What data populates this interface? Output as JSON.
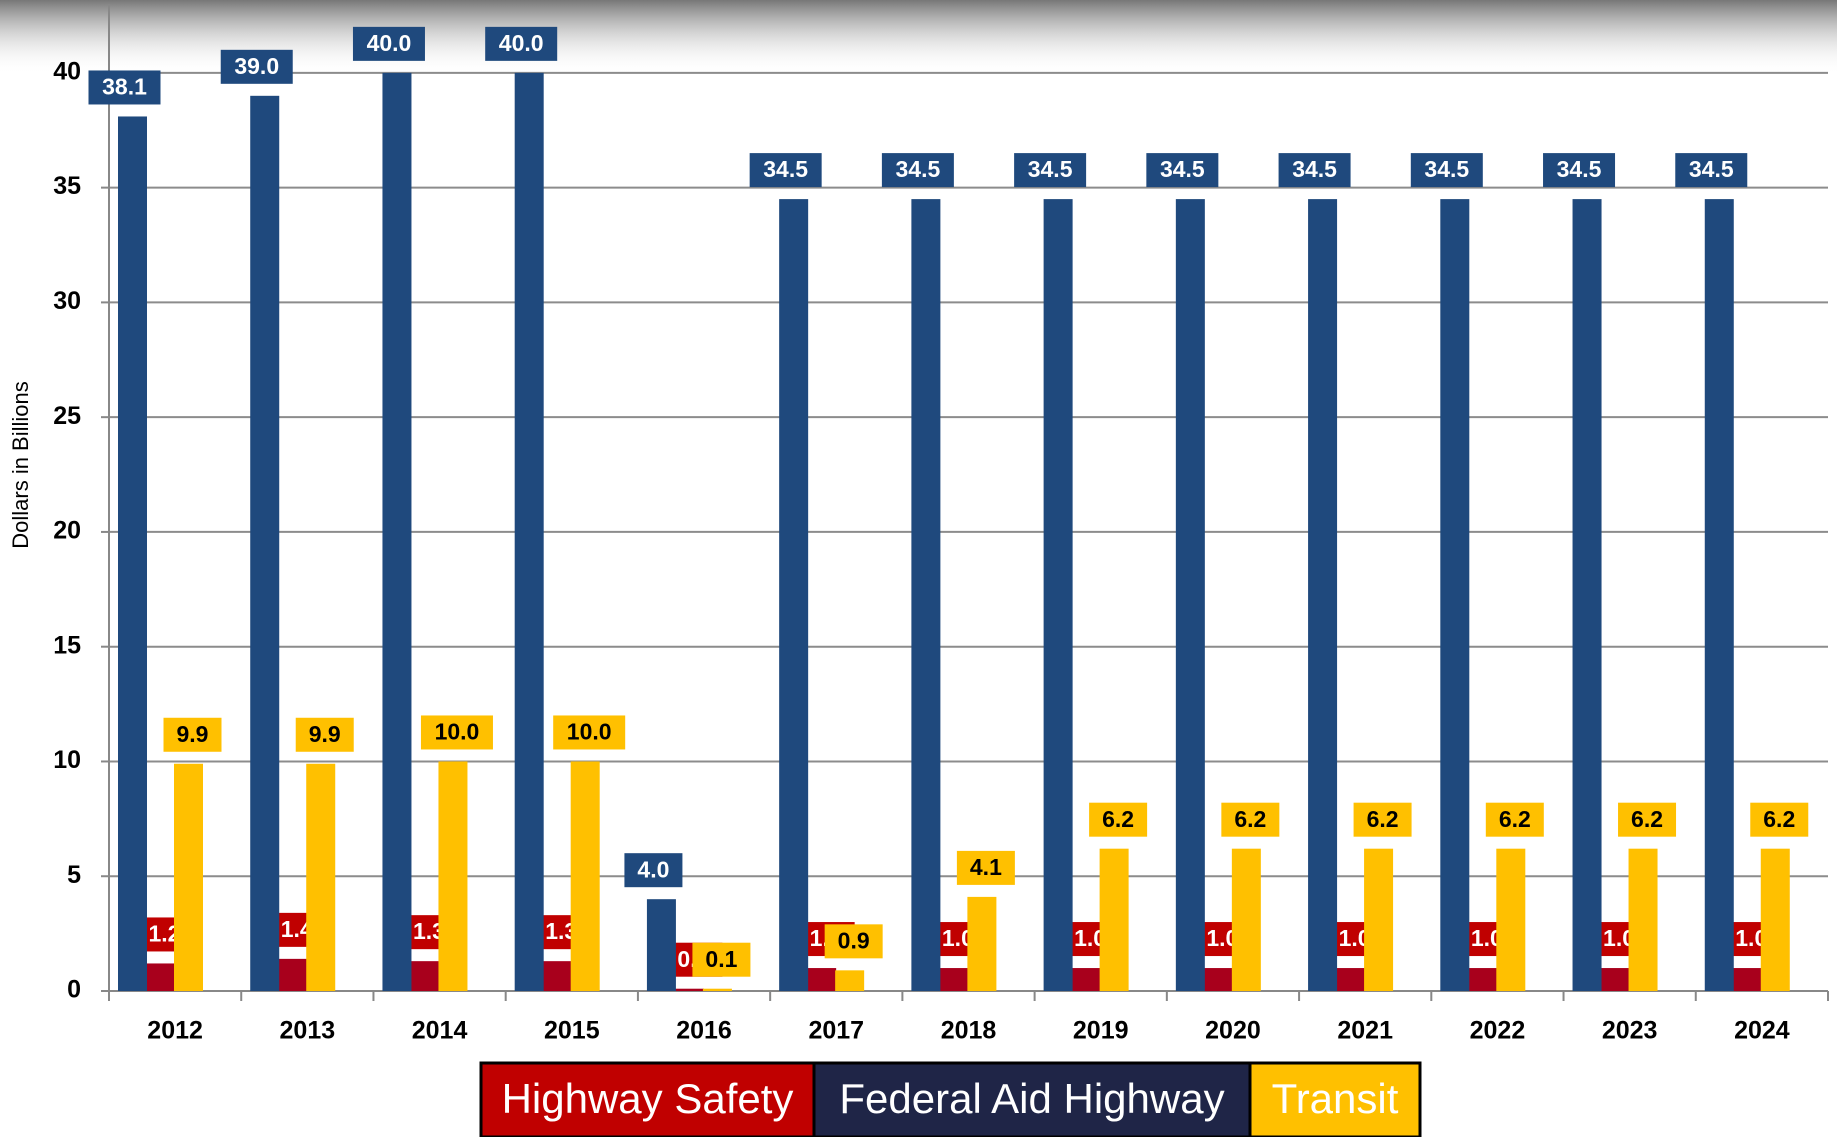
{
  "chart_data": {
    "type": "bar",
    "y_label": "Dollars in Billions",
    "categories": [
      "2012",
      "2013",
      "2014",
      "2015",
      "2016",
      "2017",
      "2018",
      "2019",
      "2020",
      "2021",
      "2022",
      "2023",
      "2024"
    ],
    "series": [
      {
        "name": "Highway Safety",
        "color": "#a8001c",
        "values": [
          1.2,
          1.4,
          1.3,
          1.3,
          0.1,
          1.0,
          1.0,
          1.0,
          1.0,
          1.0,
          1.0,
          1.0,
          1.0
        ],
        "value_labels": [
          "1.2",
          "1.4",
          "1.3",
          "1.3",
          "0.1",
          "1.0",
          "1.0",
          "1.0",
          "1.0",
          "1.0",
          "1.0",
          "1.0",
          "1.0"
        ]
      },
      {
        "name": "Federal Aid Highway",
        "color": "#1f497d",
        "values": [
          38.1,
          39.0,
          40.0,
          40.0,
          4.0,
          34.5,
          34.5,
          34.5,
          34.5,
          34.5,
          34.5,
          34.5,
          34.5
        ],
        "value_labels": [
          "38.1",
          "39.0",
          "40.0",
          "40.0",
          "4.0",
          "34.5",
          "34.5",
          "34.5",
          "34.5",
          "34.5",
          "34.5",
          "34.5",
          "34.5"
        ]
      },
      {
        "name": "Transit",
        "color": "#ffc000",
        "values": [
          9.9,
          9.9,
          10.0,
          10.0,
          0.1,
          0.9,
          4.1,
          6.2,
          6.2,
          6.2,
          6.2,
          6.2,
          6.2
        ],
        "value_labels": [
          "9.9",
          "9.9",
          "10.0",
          "10.0",
          "0.1",
          "0.9",
          "4.1",
          "6.2",
          "6.2",
          "6.2",
          "6.2",
          "6.2",
          "6.2"
        ]
      }
    ],
    "ylim": [
      0,
      43
    ],
    "yticks": [
      0,
      5,
      10,
      15,
      20,
      25,
      30,
      35,
      40
    ],
    "grid": true
  }
}
